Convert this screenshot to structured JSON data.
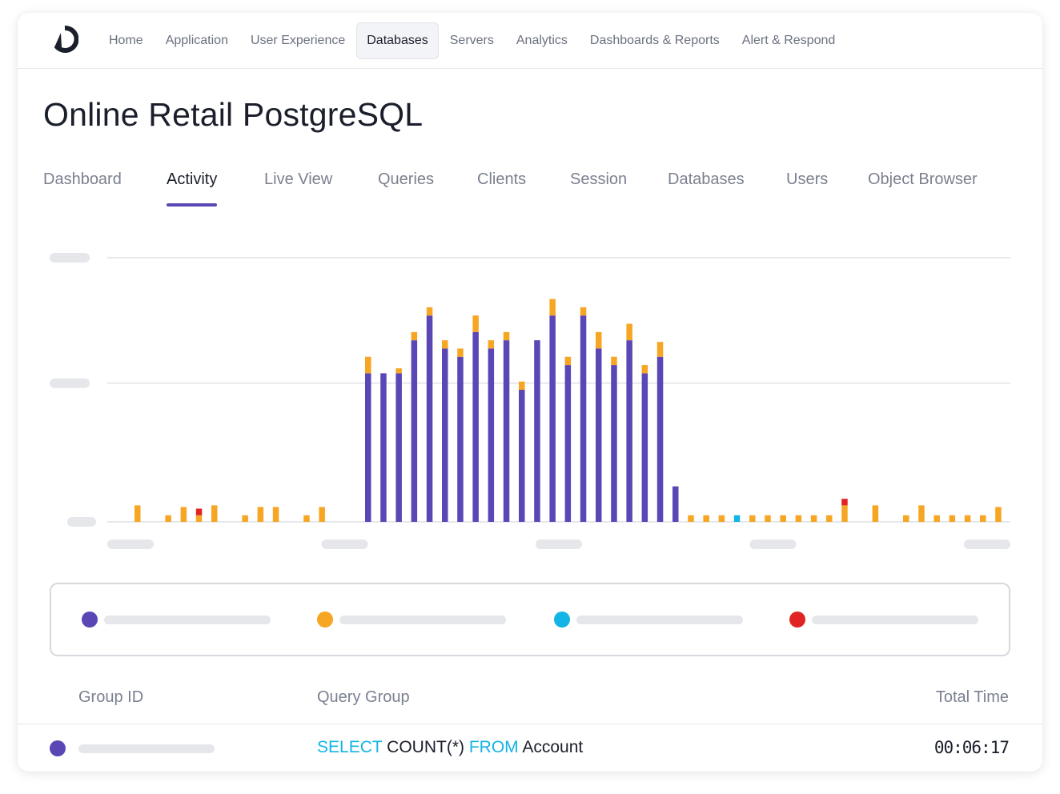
{
  "nav": {
    "items": [
      "Home",
      "Application",
      "User Experience",
      "Databases",
      "Servers",
      "Analytics",
      "Dashboards & Reports",
      "Alert & Respond"
    ],
    "active": "Databases"
  },
  "page": {
    "title": "Online Retail PostgreSQL"
  },
  "tabs": {
    "items": [
      "Dashboard",
      "Activity",
      "Live View",
      "Queries",
      "Clients",
      "Session",
      "Databases",
      "Users",
      "Object Browser"
    ],
    "active": "Activity"
  },
  "colors": {
    "accent": "#5b46b6",
    "purple": "#5b46b6",
    "orange": "#f6a623",
    "cyan": "#12b5e5",
    "red": "#e02424"
  },
  "chart_data": {
    "type": "bar",
    "stacked": true,
    "grid": true,
    "legend": "below",
    "x_tick_count": 5,
    "y_tick_count": 3,
    "categories_count": 57,
    "series": [
      {
        "color": "#5b46b6",
        "values": [
          0,
          0,
          0,
          0,
          0,
          0,
          0,
          0,
          0,
          0,
          0,
          0,
          0,
          0,
          0,
          180,
          180,
          180,
          220,
          250,
          210,
          200,
          230,
          210,
          220,
          160,
          220,
          250,
          190,
          250,
          210,
          190,
          220,
          180,
          200,
          43,
          0,
          0,
          0,
          0,
          0,
          0,
          0,
          0,
          0,
          0,
          0,
          0,
          0,
          0,
          0,
          0,
          0,
          0,
          0,
          0,
          0
        ]
      },
      {
        "color": "#f6a623",
        "values": [
          20,
          0,
          8,
          18,
          8,
          20,
          0,
          8,
          18,
          18,
          0,
          8,
          18,
          0,
          0,
          20,
          0,
          6,
          10,
          10,
          10,
          10,
          20,
          10,
          10,
          10,
          0,
          20,
          10,
          10,
          20,
          10,
          20,
          10,
          18,
          0,
          8,
          8,
          8,
          0,
          8,
          8,
          8,
          8,
          8,
          8,
          20,
          0,
          20,
          0,
          8,
          20,
          8,
          8,
          8,
          8,
          18
        ]
      },
      {
        "color": "#12b5e5",
        "values": [
          0,
          0,
          0,
          0,
          0,
          0,
          0,
          0,
          0,
          0,
          0,
          0,
          0,
          0,
          0,
          0,
          0,
          0,
          0,
          0,
          0,
          0,
          0,
          0,
          0,
          0,
          0,
          0,
          0,
          0,
          0,
          0,
          0,
          0,
          0,
          0,
          0,
          0,
          0,
          8,
          0,
          0,
          0,
          0,
          0,
          0,
          0,
          0,
          0,
          0,
          0,
          0,
          0,
          0,
          0,
          0,
          0
        ]
      },
      {
        "color": "#e02424",
        "values": [
          0,
          0,
          0,
          0,
          8,
          0,
          0,
          0,
          0,
          0,
          0,
          0,
          0,
          0,
          0,
          0,
          0,
          0,
          0,
          0,
          0,
          0,
          0,
          0,
          0,
          0,
          0,
          0,
          0,
          0,
          0,
          0,
          0,
          0,
          0,
          0,
          0,
          0,
          0,
          0,
          0,
          0,
          0,
          0,
          0,
          0,
          8,
          0,
          0,
          0,
          0,
          0,
          0,
          0,
          0,
          0,
          0
        ]
      }
    ],
    "ylim": [
      0,
      320
    ]
  },
  "legend": {
    "items": [
      {
        "color": "#5b46b6"
      },
      {
        "color": "#f6a623"
      },
      {
        "color": "#12b5e5"
      },
      {
        "color": "#e02424"
      }
    ]
  },
  "table": {
    "headers": {
      "group_id": "Group ID",
      "query_group": "Query Group",
      "total_time": "Total Time"
    },
    "rows": [
      {
        "color": "#5b46b6",
        "query": {
          "kw1": "SELECT",
          "expr": "COUNT(*)",
          "kw2": "FROM",
          "table": "Account"
        },
        "total_time": "00:06:17"
      }
    ]
  }
}
